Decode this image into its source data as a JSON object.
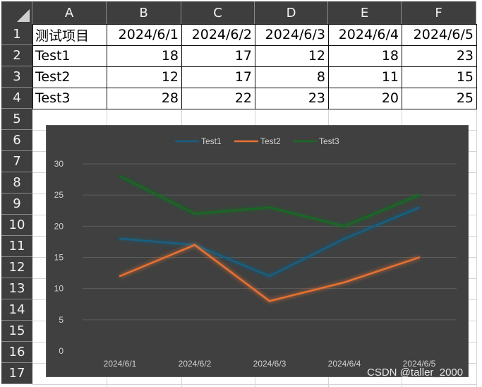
{
  "columns": [
    "A",
    "B",
    "C",
    "D",
    "E",
    "F"
  ],
  "rows": [
    "1",
    "2",
    "3",
    "4",
    "5",
    "6",
    "7",
    "8",
    "9",
    "10",
    "11",
    "12",
    "13",
    "14",
    "15",
    "16",
    "17"
  ],
  "table": {
    "header": [
      "测试项目",
      "2024/6/1",
      "2024/6/2",
      "2024/6/3",
      "2024/6/4",
      "2024/6/5"
    ],
    "rows": [
      [
        "Test1",
        "18",
        "17",
        "12",
        "18",
        "23"
      ],
      [
        "Test2",
        "12",
        "17",
        "8",
        "11",
        "15"
      ],
      [
        "Test3",
        "28",
        "22",
        "23",
        "20",
        "25"
      ]
    ]
  },
  "chart_data": {
    "type": "line",
    "title": "",
    "xlabel": "",
    "ylabel": "",
    "categories": [
      "2024/6/1",
      "2024/6/2",
      "2024/6/3",
      "2024/6/4",
      "2024/6/5"
    ],
    "series": [
      {
        "name": "Test1",
        "values": [
          18,
          17,
          12,
          18,
          23
        ],
        "color": "#156082"
      },
      {
        "name": "Test2",
        "values": [
          12,
          17,
          8,
          11,
          15
        ],
        "color": "#e97132"
      },
      {
        "name": "Test3",
        "values": [
          28,
          22,
          23,
          20,
          25
        ],
        "color": "#196b24"
      }
    ],
    "ylim": [
      0,
      30
    ],
    "yticks": [
      "0",
      "5",
      "10",
      "15",
      "20",
      "25",
      "30"
    ],
    "grid": true,
    "legend": "top",
    "background": "#404040"
  },
  "watermark": "CSDN @taller_2000"
}
